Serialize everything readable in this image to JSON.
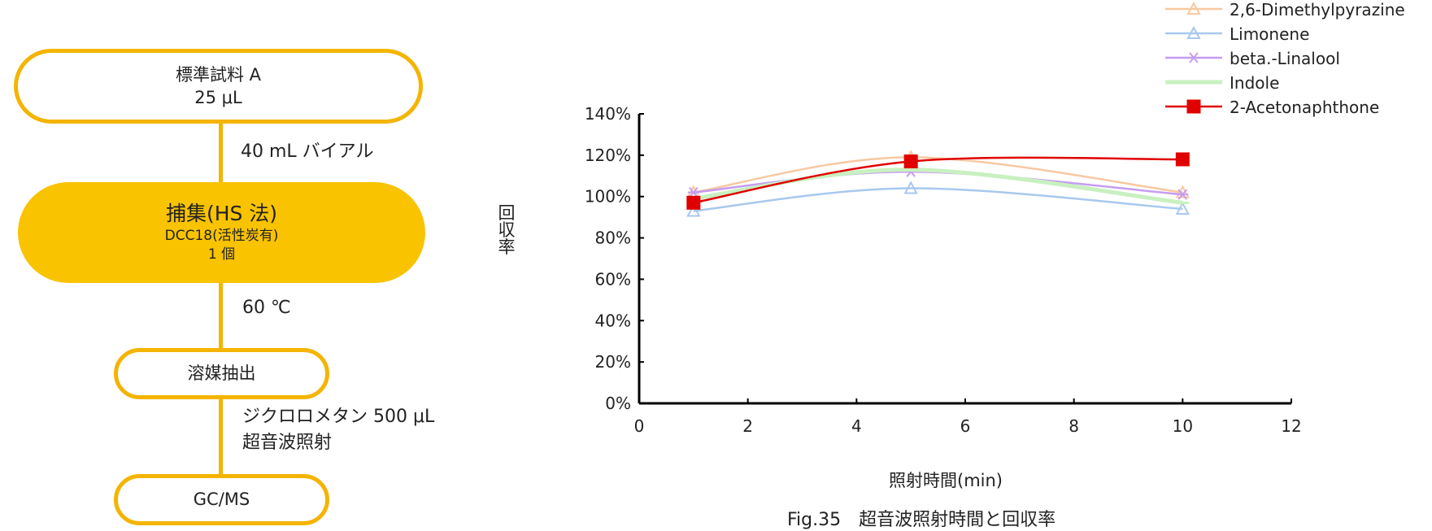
{
  "flowchart": {
    "step1": {
      "line1": "標準試料 A",
      "line2": "25 μL"
    },
    "arrow1": "40 mL バイアル",
    "step2": {
      "title": "捕集(HS 法)",
      "line2": "DCC18(活性炭有)",
      "line3": "1 個"
    },
    "arrow2": "60 ℃",
    "step3": {
      "label": "溶媒抽出"
    },
    "arrow3": {
      "line1": "ジクロロメタン 500 μL",
      "line2": "超音波照射"
    },
    "step4": {
      "label": "GC/MS"
    },
    "colors": {
      "outline": "#F4B400",
      "fill": "#F9C300"
    }
  },
  "figure_caption": "Fig.35　超音波照射時間と回収率",
  "chart_data": {
    "type": "line",
    "xlabel": "照射時間(min)",
    "ylabel": "回収率",
    "xlim": [
      0,
      12
    ],
    "ylim": [
      0,
      140
    ],
    "xticks": [
      "0",
      "2",
      "4",
      "6",
      "8",
      "10",
      "12"
    ],
    "yticks": [
      "0%",
      "20%",
      "40%",
      "60%",
      "80%",
      "100%",
      "120%",
      "140%"
    ],
    "grid": false,
    "legend_position": "top-right",
    "smooth": true,
    "x": [
      1,
      5,
      10
    ],
    "series": [
      {
        "name": "2,6-Dimethylpyrazine",
        "values": [
          102,
          119,
          102
        ],
        "color": "#F8C8A0",
        "marker": "triangle"
      },
      {
        "name": "Limonene",
        "values": [
          93,
          104,
          94
        ],
        "color": "#A8C8EE",
        "marker": "triangle"
      },
      {
        "name": "beta.-Linalool",
        "values": [
          102,
          112,
          101
        ],
        "color": "#C59CF0",
        "marker": "star"
      },
      {
        "name": "Indole",
        "values": [
          99,
          113,
          97
        ],
        "color": "#C8F0C0",
        "marker": "dash"
      },
      {
        "name": "2-Acetonaphthone",
        "values": [
          97,
          117,
          118
        ],
        "color": "#E00000",
        "marker": "square"
      }
    ]
  }
}
